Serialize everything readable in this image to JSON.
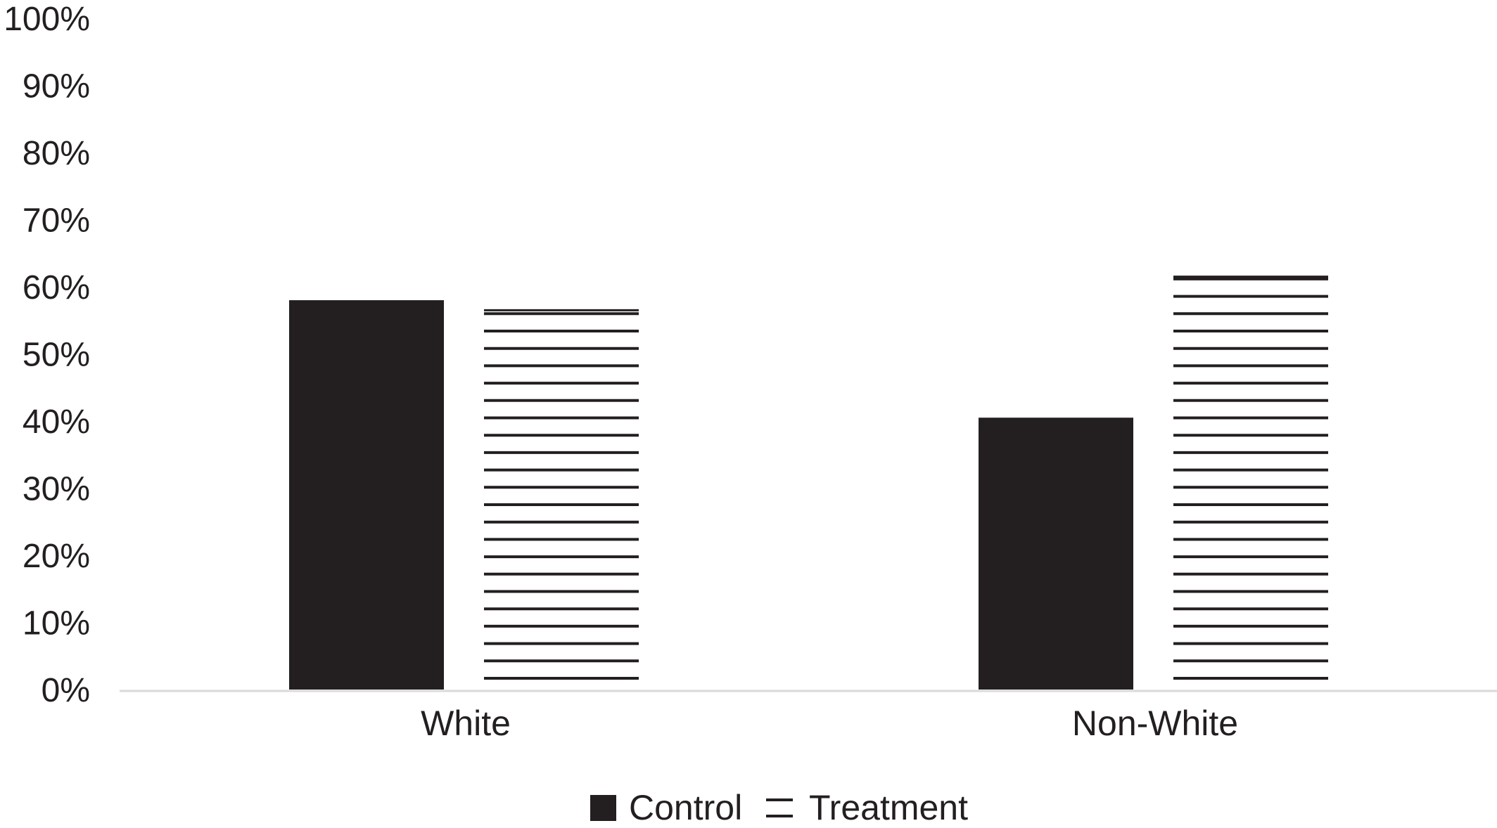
{
  "chart_data": {
    "type": "bar",
    "categories": [
      "White",
      "Non-White"
    ],
    "series": [
      {
        "name": "Control",
        "values": [
          58,
          40.5
        ],
        "style": "solid",
        "color": "#231f20"
      },
      {
        "name": "Treatment",
        "values": [
          56.5,
          61.5
        ],
        "style": "horizontal-stripes",
        "color": "#231f20"
      }
    ],
    "yticks": [
      "0%",
      "10%",
      "20%",
      "30%",
      "40%",
      "50%",
      "60%",
      "70%",
      "80%",
      "90%",
      "100%"
    ],
    "ylim": [
      0,
      100
    ],
    "xlabel": "",
    "ylabel": "",
    "title": "",
    "grid": false,
    "legend_position": "bottom-center",
    "axis_color": "#d9d9d9"
  }
}
